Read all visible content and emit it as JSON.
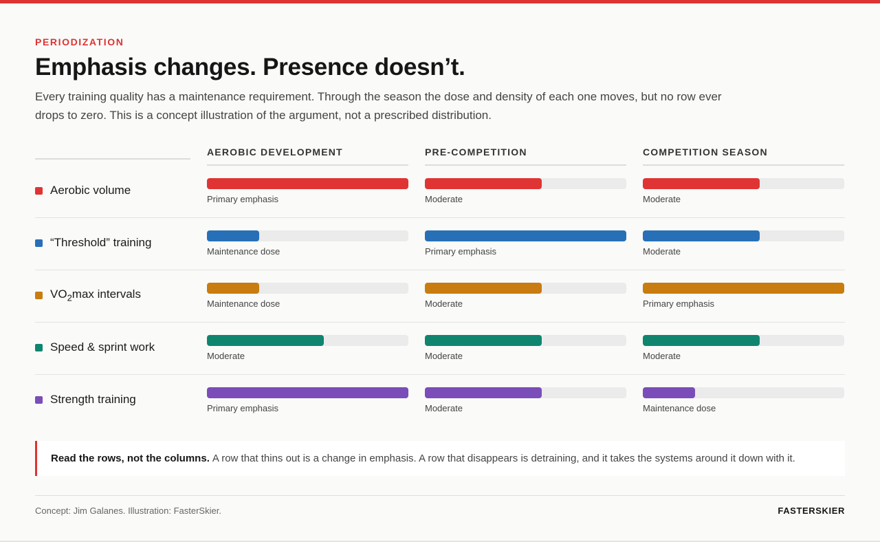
{
  "eyebrow": "PERIODIZATION",
  "title": "Emphasis changes. Presence doesn’t.",
  "subtitle": "Every training quality has a maintenance requirement. Through the season the dose and density of each one moves, but no row ever drops to zero. This is a concept illustration of the argument, not a prescribed distribution.",
  "callout": {
    "lead": "Read the rows, not the columns.",
    "text": "A row that thins out is a change in emphasis. A row that disappears is detraining, and it takes the systems around it down with it."
  },
  "footer": {
    "credit": "Concept: Jim Galanes. Illustration: FasterSkier.",
    "brand": "FASTERSKIER"
  },
  "colors": {
    "accent": "#dd3333",
    "track": "#ebebeb"
  },
  "chart_data": {
    "type": "bar",
    "categories": [
      "AEROBIC DEVELOPMENT",
      "PRE-COMPETITION",
      "COMPETITION SEASON"
    ],
    "scale_max": 1,
    "series": [
      {
        "name": "Aerobic volume",
        "color": "#e03434",
        "values": [
          1.0,
          0.58,
          0.58
        ],
        "labels": [
          "Primary emphasis",
          "Moderate",
          "Moderate"
        ]
      },
      {
        "name": "“Threshold” training",
        "color": "#2770b7",
        "values": [
          0.26,
          1.0,
          0.58
        ],
        "labels": [
          "Maintenance dose",
          "Primary emphasis",
          "Moderate"
        ]
      },
      {
        "name": "VO2max intervals",
        "name_main": "VO",
        "name_sub": "2",
        "name_rest": "max intervals",
        "color": "#c97c0f",
        "values": [
          0.26,
          0.58,
          1.0
        ],
        "labels": [
          "Maintenance dose",
          "Moderate",
          "Primary emphasis"
        ]
      },
      {
        "name": "Speed & sprint work",
        "color": "#0f8570",
        "values": [
          0.58,
          0.58,
          0.58
        ],
        "labels": [
          "Moderate",
          "Moderate",
          "Moderate"
        ]
      },
      {
        "name": "Strength training",
        "color": "#7b4db8",
        "values": [
          1.0,
          0.58,
          0.26
        ],
        "labels": [
          "Primary emphasis",
          "Moderate",
          "Maintenance dose"
        ]
      }
    ]
  }
}
